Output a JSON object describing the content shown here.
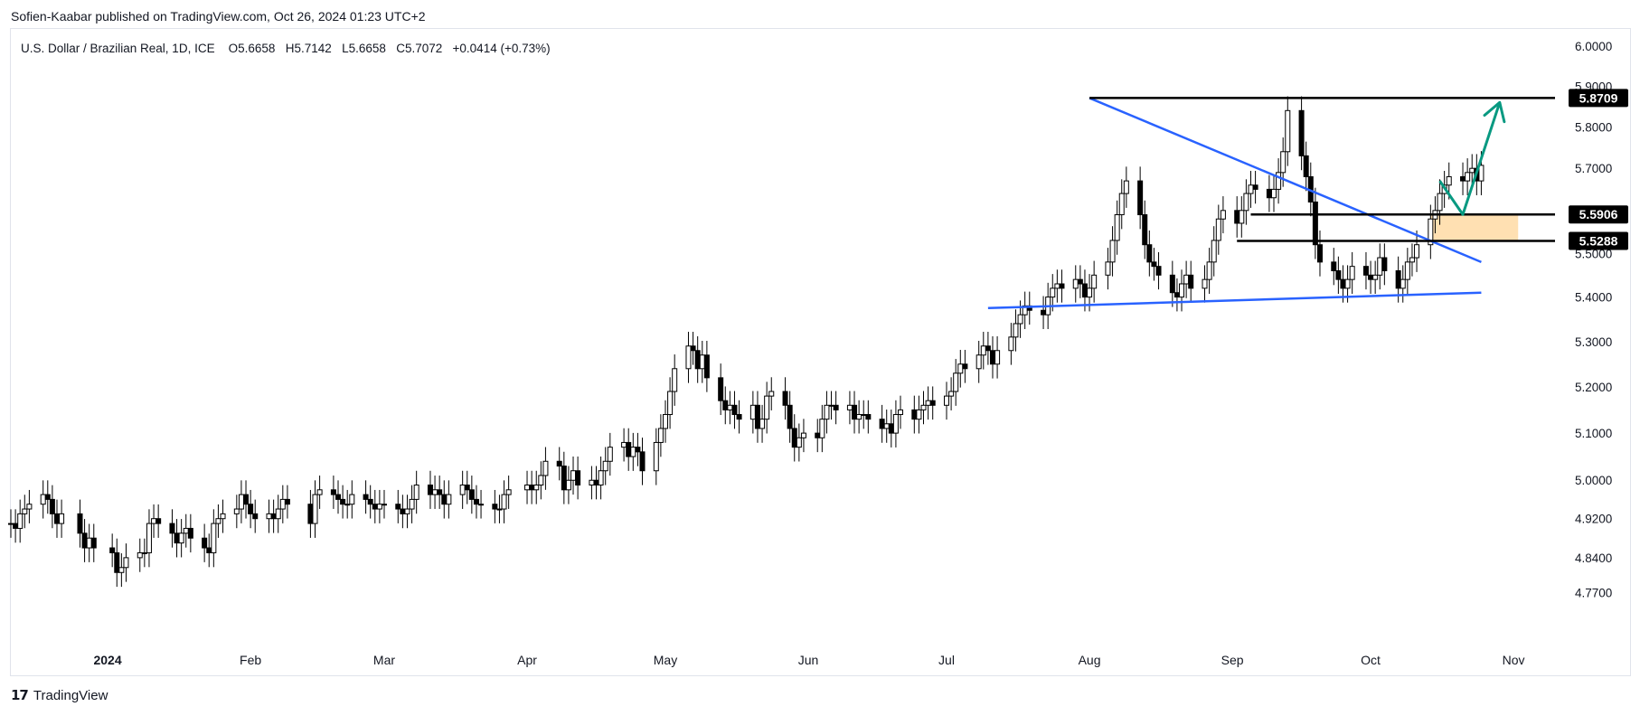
{
  "header": {
    "publisher_line": "Sofien-Kaabar published on TradingView.com, Oct 26, 2024 01:23 UTC+2",
    "symbol": "U.S. Dollar / Brazilian Real, 1D, ICE",
    "ohlc": {
      "open_label": "O",
      "open": "5.6658",
      "high_label": "H",
      "high": "5.7142",
      "low_label": "L",
      "low": "5.6658",
      "close_label": "C",
      "close": "5.7072",
      "change": "+0.0414 (+0.73%)"
    }
  },
  "footer": {
    "brand": "TradingView",
    "logo_icon": "tradingview-logo-icon"
  },
  "colors": {
    "up_candle": "#ffffff",
    "down_candle": "#000000",
    "candle_outline": "#000000",
    "trendline": "#2962ff",
    "arrow": "#089981",
    "zone": "#ffe0b2",
    "level_line": "#000000"
  },
  "chart_data": {
    "type": "candlestick",
    "y_scale": "log",
    "ylim": [
      4.72,
      6.03
    ],
    "y_ticks": [
      "6.0000",
      "5.9000",
      "5.8000",
      "5.7000",
      "5.6000",
      "5.5000",
      "5.4000",
      "5.3000",
      "5.2000",
      "5.1000",
      "5.0000",
      "4.9200",
      "4.8400",
      "4.7700"
    ],
    "x_labels": [
      "2024",
      "Feb",
      "Mar",
      "Apr",
      "May",
      "Jun",
      "Jul",
      "Aug",
      "Sep",
      "Oct",
      "Nov"
    ],
    "x_label_dates": [
      "2024-01-01",
      "2024-02-01",
      "2024-03-01",
      "2024-04-01",
      "2024-05-01",
      "2024-06-01",
      "2024-07-01",
      "2024-08-01",
      "2024-09-01",
      "2024-10-01",
      "2024-11-01"
    ],
    "x_range": [
      "2023-12-11",
      "2024-11-10"
    ],
    "candles": [
      {
        "d": "2023-12-11",
        "c": 4.91
      },
      {
        "d": "2023-12-12",
        "c": 4.9
      },
      {
        "d": "2023-12-13",
        "c": 4.93
      },
      {
        "d": "2023-12-14",
        "c": 4.94
      },
      {
        "d": "2023-12-15",
        "c": 4.95
      },
      {
        "d": "2023-12-18",
        "c": 4.97
      },
      {
        "d": "2023-12-19",
        "c": 4.96
      },
      {
        "d": "2023-12-20",
        "c": 4.93
      },
      {
        "d": "2023-12-21",
        "c": 4.91
      },
      {
        "d": "2023-12-22",
        "c": 4.93
      },
      {
        "d": "2023-12-26",
        "c": 4.89
      },
      {
        "d": "2023-12-27",
        "c": 4.86
      },
      {
        "d": "2023-12-28",
        "c": 4.88
      },
      {
        "d": "2023-12-29",
        "c": 4.86
      },
      {
        "d": "2024-01-02",
        "c": 4.85
      },
      {
        "d": "2024-01-03",
        "c": 4.81
      },
      {
        "d": "2024-01-04",
        "c": 4.82
      },
      {
        "d": "2024-01-05",
        "c": 4.84
      },
      {
        "d": "2024-01-08",
        "c": 4.85
      },
      {
        "d": "2024-01-09",
        "c": 4.85
      },
      {
        "d": "2024-01-10",
        "c": 4.91
      },
      {
        "d": "2024-01-11",
        "c": 4.92
      },
      {
        "d": "2024-01-12",
        "c": 4.91
      },
      {
        "d": "2024-01-15",
        "c": 4.89
      },
      {
        "d": "2024-01-16",
        "c": 4.87
      },
      {
        "d": "2024-01-17",
        "c": 4.89
      },
      {
        "d": "2024-01-18",
        "c": 4.9
      },
      {
        "d": "2024-01-19",
        "c": 4.88
      },
      {
        "d": "2024-01-22",
        "c": 4.86
      },
      {
        "d": "2024-01-23",
        "c": 4.85
      },
      {
        "d": "2024-01-24",
        "c": 4.91
      },
      {
        "d": "2024-01-25",
        "c": 4.92
      },
      {
        "d": "2024-01-26",
        "c": 4.93
      },
      {
        "d": "2024-01-29",
        "c": 4.94
      },
      {
        "d": "2024-01-30",
        "c": 4.97
      },
      {
        "d": "2024-01-31",
        "c": 4.95
      },
      {
        "d": "2024-02-01",
        "c": 4.93
      },
      {
        "d": "2024-02-02",
        "c": 4.92
      },
      {
        "d": "2024-02-05",
        "c": 4.93
      },
      {
        "d": "2024-02-06",
        "c": 4.92
      },
      {
        "d": "2024-02-07",
        "c": 4.94
      },
      {
        "d": "2024-02-08",
        "c": 4.96
      },
      {
        "d": "2024-02-09",
        "c": 4.95
      },
      {
        "d": "2024-02-14",
        "c": 4.91
      },
      {
        "d": "2024-02-15",
        "c": 4.97
      },
      {
        "d": "2024-02-16",
        "c": 4.98
      },
      {
        "d": "2024-02-19",
        "c": 4.97
      },
      {
        "d": "2024-02-20",
        "c": 4.96
      },
      {
        "d": "2024-02-21",
        "c": 4.95
      },
      {
        "d": "2024-02-22",
        "c": 4.95
      },
      {
        "d": "2024-02-23",
        "c": 4.97
      },
      {
        "d": "2024-02-26",
        "c": 4.96
      },
      {
        "d": "2024-02-27",
        "c": 4.95
      },
      {
        "d": "2024-02-28",
        "c": 4.94
      },
      {
        "d": "2024-02-29",
        "c": 4.95
      },
      {
        "d": "2024-03-01",
        "c": 4.95
      },
      {
        "d": "2024-03-04",
        "c": 4.94
      },
      {
        "d": "2024-03-05",
        "c": 4.93
      },
      {
        "d": "2024-03-06",
        "c": 4.94
      },
      {
        "d": "2024-03-07",
        "c": 4.96
      },
      {
        "d": "2024-03-08",
        "c": 4.99
      },
      {
        "d": "2024-03-11",
        "c": 4.97
      },
      {
        "d": "2024-03-12",
        "c": 4.98
      },
      {
        "d": "2024-03-13",
        "c": 4.97
      },
      {
        "d": "2024-03-14",
        "c": 4.95
      },
      {
        "d": "2024-03-15",
        "c": 4.97
      },
      {
        "d": "2024-03-18",
        "c": 4.99
      },
      {
        "d": "2024-03-19",
        "c": 4.98
      },
      {
        "d": "2024-03-20",
        "c": 4.96
      },
      {
        "d": "2024-03-21",
        "c": 4.95
      },
      {
        "d": "2024-03-22",
        "c": 4.95
      },
      {
        "d": "2024-03-25",
        "c": 4.94
      },
      {
        "d": "2024-03-26",
        "c": 4.94
      },
      {
        "d": "2024-03-27",
        "c": 4.97
      },
      {
        "d": "2024-03-28",
        "c": 4.98
      },
      {
        "d": "2024-04-01",
        "c": 4.99
      },
      {
        "d": "2024-04-02",
        "c": 4.98
      },
      {
        "d": "2024-04-03",
        "c": 4.99
      },
      {
        "d": "2024-04-04",
        "c": 5.01
      },
      {
        "d": "2024-04-05",
        "c": 5.04
      },
      {
        "d": "2024-04-08",
        "c": 5.03
      },
      {
        "d": "2024-04-09",
        "c": 4.98
      },
      {
        "d": "2024-04-10",
        "c": 5.0
      },
      {
        "d": "2024-04-11",
        "c": 5.02
      },
      {
        "d": "2024-04-12",
        "c": 4.99
      },
      {
        "d": "2024-04-15",
        "c": 5.0
      },
      {
        "d": "2024-04-16",
        "c": 4.99
      },
      {
        "d": "2024-04-17",
        "c": 5.02
      },
      {
        "d": "2024-04-18",
        "c": 5.04
      },
      {
        "d": "2024-04-19",
        "c": 5.07
      },
      {
        "d": "2024-04-22",
        "c": 5.08
      },
      {
        "d": "2024-04-23",
        "c": 5.05
      },
      {
        "d": "2024-04-24",
        "c": 5.07
      },
      {
        "d": "2024-04-25",
        "c": 5.06
      },
      {
        "d": "2024-04-26",
        "c": 5.02
      },
      {
        "d": "2024-04-29",
        "c": 5.08
      },
      {
        "d": "2024-04-30",
        "c": 5.11
      },
      {
        "d": "2024-05-01",
        "c": 5.14
      },
      {
        "d": "2024-05-02",
        "c": 5.19
      },
      {
        "d": "2024-05-03",
        "c": 5.24
      },
      {
        "d": "2024-05-06",
        "c": 5.29
      },
      {
        "d": "2024-05-07",
        "c": 5.28
      },
      {
        "d": "2024-05-08",
        "c": 5.24
      },
      {
        "d": "2024-05-09",
        "c": 5.27
      },
      {
        "d": "2024-05-10",
        "c": 5.22
      },
      {
        "d": "2024-05-13",
        "c": 5.17
      },
      {
        "d": "2024-05-14",
        "c": 5.15
      },
      {
        "d": "2024-05-15",
        "c": 5.16
      },
      {
        "d": "2024-05-16",
        "c": 5.14
      },
      {
        "d": "2024-05-17",
        "c": 5.13
      },
      {
        "d": "2024-05-20",
        "c": 5.16
      },
      {
        "d": "2024-05-21",
        "c": 5.11
      },
      {
        "d": "2024-05-22",
        "c": 5.13
      },
      {
        "d": "2024-05-23",
        "c": 5.18
      },
      {
        "d": "2024-05-24",
        "c": 5.19
      },
      {
        "d": "2024-05-27",
        "c": 5.16
      },
      {
        "d": "2024-05-28",
        "c": 5.11
      },
      {
        "d": "2024-05-29",
        "c": 5.07
      },
      {
        "d": "2024-05-30",
        "c": 5.09
      },
      {
        "d": "2024-05-31",
        "c": 5.1
      },
      {
        "d": "2024-06-03",
        "c": 5.09
      },
      {
        "d": "2024-06-04",
        "c": 5.13
      },
      {
        "d": "2024-06-05",
        "c": 5.16
      },
      {
        "d": "2024-06-06",
        "c": 5.16
      },
      {
        "d": "2024-06-07",
        "c": 5.15
      },
      {
        "d": "2024-06-10",
        "c": 5.16
      },
      {
        "d": "2024-06-11",
        "c": 5.13
      },
      {
        "d": "2024-06-12",
        "c": 5.14
      },
      {
        "d": "2024-06-13",
        "c": 5.14
      },
      {
        "d": "2024-06-14",
        "c": 5.13
      },
      {
        "d": "2024-06-17",
        "c": 5.11
      },
      {
        "d": "2024-06-18",
        "c": 5.12
      },
      {
        "d": "2024-06-19",
        "c": 5.1
      },
      {
        "d": "2024-06-20",
        "c": 5.14
      },
      {
        "d": "2024-06-21",
        "c": 5.15
      },
      {
        "d": "2024-06-24",
        "c": 5.13
      },
      {
        "d": "2024-06-25",
        "c": 5.15
      },
      {
        "d": "2024-06-26",
        "c": 5.16
      },
      {
        "d": "2024-06-27",
        "c": 5.17
      },
      {
        "d": "2024-06-28",
        "c": 5.16
      },
      {
        "d": "2024-07-01",
        "c": 5.18
      },
      {
        "d": "2024-07-02",
        "c": 5.19
      },
      {
        "d": "2024-07-03",
        "c": 5.23
      },
      {
        "d": "2024-07-04",
        "c": 5.25
      },
      {
        "d": "2024-07-05",
        "c": 5.24
      },
      {
        "d": "2024-07-08",
        "c": 5.27
      },
      {
        "d": "2024-07-09",
        "c": 5.29
      },
      {
        "d": "2024-07-10",
        "c": 5.28
      },
      {
        "d": "2024-07-11",
        "c": 5.25
      },
      {
        "d": "2024-07-12",
        "c": 5.28
      },
      {
        "d": "2024-07-15",
        "c": 5.31
      },
      {
        "d": "2024-07-16",
        "c": 5.34
      },
      {
        "d": "2024-07-17",
        "c": 5.36
      },
      {
        "d": "2024-07-18",
        "c": 5.38
      },
      {
        "d": "2024-07-19",
        "c": 5.37
      },
      {
        "d": "2024-07-22",
        "c": 5.36
      },
      {
        "d": "2024-07-23",
        "c": 5.4
      },
      {
        "d": "2024-07-24",
        "c": 5.42
      },
      {
        "d": "2024-07-25",
        "c": 5.43
      },
      {
        "d": "2024-07-26",
        "c": 5.42
      },
      {
        "d": "2024-07-29",
        "c": 5.44
      },
      {
        "d": "2024-07-30",
        "c": 5.43
      },
      {
        "d": "2024-07-31",
        "c": 5.4
      },
      {
        "d": "2024-08-01",
        "c": 5.42
      },
      {
        "d": "2024-08-02",
        "c": 5.45
      },
      {
        "d": "2024-08-05",
        "c": 5.48
      },
      {
        "d": "2024-08-06",
        "c": 5.53
      },
      {
        "d": "2024-08-07",
        "c": 5.59
      },
      {
        "d": "2024-08-08",
        "c": 5.64
      },
      {
        "d": "2024-08-09",
        "c": 5.67
      },
      {
        "d": "2024-08-12",
        "c": 5.59
      },
      {
        "d": "2024-08-13",
        "c": 5.52
      },
      {
        "d": "2024-08-14",
        "c": 5.48
      },
      {
        "d": "2024-08-15",
        "c": 5.47
      },
      {
        "d": "2024-08-16",
        "c": 5.45
      },
      {
        "d": "2024-08-19",
        "c": 5.41
      },
      {
        "d": "2024-08-20",
        "c": 5.4
      },
      {
        "d": "2024-08-21",
        "c": 5.43
      },
      {
        "d": "2024-08-22",
        "c": 5.45
      },
      {
        "d": "2024-08-23",
        "c": 5.42
      },
      {
        "d": "2024-08-26",
        "c": 5.44
      },
      {
        "d": "2024-08-27",
        "c": 5.48
      },
      {
        "d": "2024-08-28",
        "c": 5.53
      },
      {
        "d": "2024-08-29",
        "c": 5.58
      },
      {
        "d": "2024-08-30",
        "c": 5.6
      },
      {
        "d": "2024-09-02",
        "c": 5.57
      },
      {
        "d": "2024-09-03",
        "c": 5.6
      },
      {
        "d": "2024-09-04",
        "c": 5.64
      },
      {
        "d": "2024-09-05",
        "c": 5.66
      },
      {
        "d": "2024-09-06",
        "c": 5.65
      },
      {
        "d": "2024-09-09",
        "c": 5.63
      },
      {
        "d": "2024-09-10",
        "c": 5.65
      },
      {
        "d": "2024-09-11",
        "c": 5.69
      },
      {
        "d": "2024-09-12",
        "c": 5.74
      },
      {
        "d": "2024-09-13",
        "c": 5.84
      },
      {
        "d": "2024-09-16",
        "c": 5.73
      },
      {
        "d": "2024-09-17",
        "c": 5.68
      },
      {
        "d": "2024-09-18",
        "c": 5.62
      },
      {
        "d": "2024-09-19",
        "c": 5.52
      },
      {
        "d": "2024-09-20",
        "c": 5.48
      },
      {
        "d": "2024-09-23",
        "c": 5.46
      },
      {
        "d": "2024-09-24",
        "c": 5.44
      },
      {
        "d": "2024-09-25",
        "c": 5.42
      },
      {
        "d": "2024-09-26",
        "c": 5.44
      },
      {
        "d": "2024-09-27",
        "c": 5.47
      },
      {
        "d": "2024-09-30",
        "c": 5.45
      },
      {
        "d": "2024-10-01",
        "c": 5.44
      },
      {
        "d": "2024-10-02",
        "c": 5.45
      },
      {
        "d": "2024-10-03",
        "c": 5.49
      },
      {
        "d": "2024-10-04",
        "c": 5.46
      },
      {
        "d": "2024-10-07",
        "c": 5.42
      },
      {
        "d": "2024-10-08",
        "c": 5.44
      },
      {
        "d": "2024-10-09",
        "c": 5.48
      },
      {
        "d": "2024-10-10",
        "c": 5.49
      },
      {
        "d": "2024-10-11",
        "c": 5.52
      },
      {
        "d": "2024-10-14",
        "c": 5.58
      },
      {
        "d": "2024-10-15",
        "c": 5.6
      },
      {
        "d": "2024-10-16",
        "c": 5.64
      },
      {
        "d": "2024-10-17",
        "c": 5.66
      },
      {
        "d": "2024-10-18",
        "c": 5.68
      },
      {
        "d": "2024-10-21",
        "c": 5.67
      },
      {
        "d": "2024-10-22",
        "c": 5.69
      },
      {
        "d": "2024-10-23",
        "c": 5.7
      },
      {
        "d": "2024-10-24",
        "c": 5.67
      },
      {
        "d": "2024-10-25",
        "c": 5.7072
      }
    ],
    "annotations": {
      "horizontal_levels": [
        {
          "value": 5.8709,
          "label": "5.8709",
          "from": "2024-08-01",
          "to": "2024-11-10"
        },
        {
          "value": 5.5906,
          "label": "5.5906",
          "from": "2024-09-05",
          "to": "2024-11-10"
        },
        {
          "value": 5.5288,
          "label": "5.5288",
          "from": "2024-09-02",
          "to": "2024-11-10"
        }
      ],
      "trendlines": [
        {
          "from_date": "2024-08-01",
          "from_value": 5.8709,
          "to_date": "2024-10-25",
          "to_value": 5.48
        },
        {
          "from_date": "2024-07-10",
          "from_value": 5.375,
          "to_date": "2024-10-25",
          "to_value": 5.41
        }
      ],
      "zone": {
        "from_date": "2024-10-14",
        "to_date": "2024-11-02",
        "top": 5.5906,
        "bottom": 5.5288
      },
      "arrow_path": [
        {
          "date": "2024-10-16",
          "value": 5.67
        },
        {
          "date": "2024-10-21",
          "value": 5.5906
        },
        {
          "date": "2024-10-29",
          "value": 5.86
        }
      ]
    }
  }
}
